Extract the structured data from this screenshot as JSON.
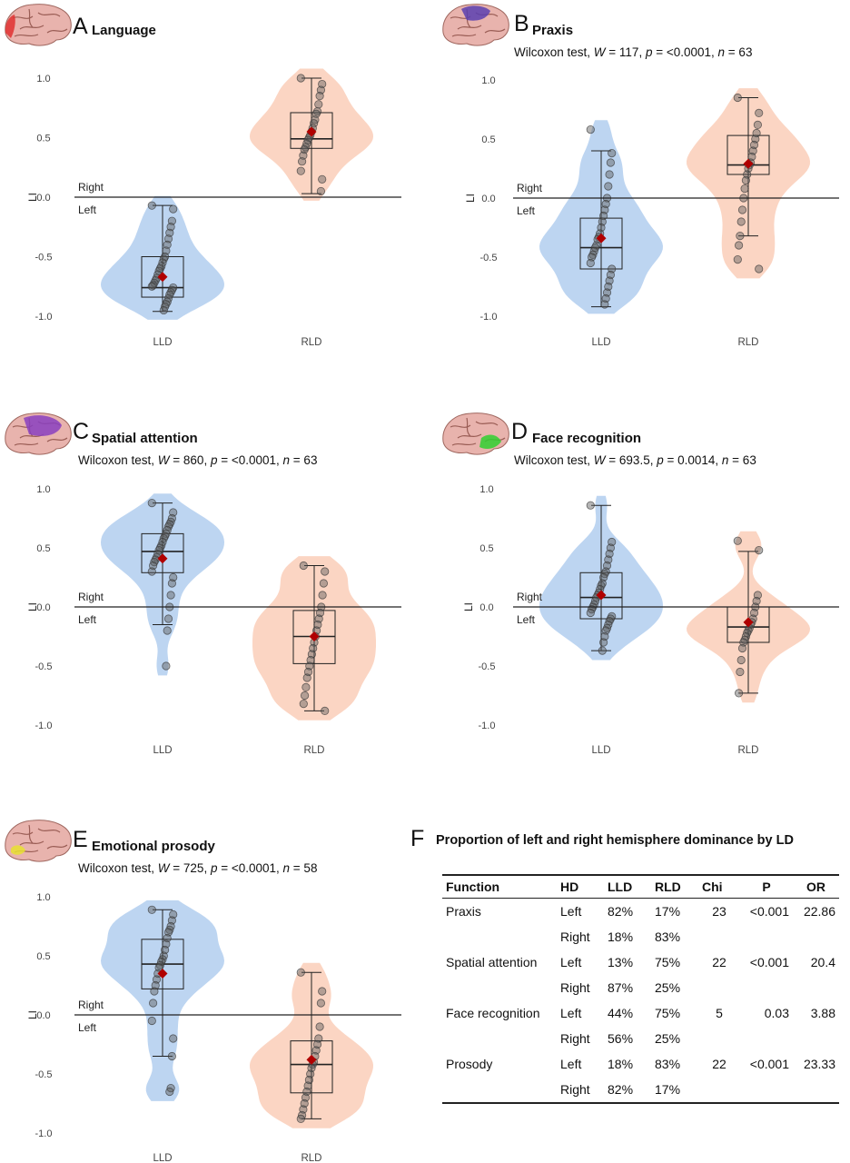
{
  "colors": {
    "lld": "#b9d3f0",
    "rld": "#fbd3c0",
    "mean": "#b00000",
    "point": "#5a5a5a"
  },
  "common": {
    "right_label": "Right",
    "left_label": "Left",
    "li_label": "LI",
    "categories": [
      "LLD",
      "RLD"
    ],
    "y_ticks": [
      "1.0",
      "0.5",
      "0.0",
      "-0.5",
      "-1.0"
    ]
  },
  "panels": [
    {
      "letter": "A",
      "title": "Language",
      "stat": null,
      "brain_highlight": "#e03030",
      "chart_data": {
        "type": "violin-box",
        "ylim": [
          -1,
          1
        ],
        "groups": [
          {
            "name": "LLD",
            "q1": -0.84,
            "median": -0.76,
            "q3": -0.5,
            "whisker_low": -0.96,
            "whisker_high": -0.07,
            "mean": -0.67,
            "points": [
              -0.07,
              -0.1,
              -0.2,
              -0.25,
              -0.3,
              -0.35,
              -0.4,
              -0.45,
              -0.5,
              -0.52,
              -0.55,
              -0.58,
              -0.6,
              -0.62,
              -0.65,
              -0.68,
              -0.7,
              -0.72,
              -0.74,
              -0.75,
              -0.76,
              -0.78,
              -0.8,
              -0.82,
              -0.85,
              -0.88,
              -0.9,
              -0.92,
              -0.95
            ]
          },
          {
            "name": "RLD",
            "q1": 0.41,
            "median": 0.49,
            "q3": 0.71,
            "whisker_low": 0.03,
            "whisker_high": 1.0,
            "mean": 0.55,
            "points": [
              1.0,
              0.95,
              0.9,
              0.85,
              0.78,
              0.72,
              0.7,
              0.65,
              0.62,
              0.58,
              0.55,
              0.52,
              0.5,
              0.48,
              0.45,
              0.42,
              0.4,
              0.35,
              0.3,
              0.22,
              0.15,
              0.05
            ]
          }
        ]
      }
    },
    {
      "letter": "B",
      "title": "Praxis",
      "stat": {
        "pre": "Wilcoxon test, ",
        "W": "117",
        "p": "<0.0001",
        "n": "63"
      },
      "brain_highlight": "#5a3fb0",
      "chart_data": {
        "type": "violin-box",
        "ylim": [
          -1,
          1
        ],
        "groups": [
          {
            "name": "LLD",
            "q1": -0.6,
            "median": -0.42,
            "q3": -0.17,
            "whisker_low": -0.92,
            "whisker_high": 0.4,
            "mean": -0.34,
            "points": [
              0.58,
              0.38,
              0.3,
              0.2,
              0.1,
              0.0,
              -0.05,
              -0.1,
              -0.15,
              -0.2,
              -0.25,
              -0.3,
              -0.33,
              -0.35,
              -0.4,
              -0.42,
              -0.45,
              -0.48,
              -0.5,
              -0.55,
              -0.6,
              -0.65,
              -0.7,
              -0.75,
              -0.8,
              -0.85,
              -0.9
            ]
          },
          {
            "name": "RLD",
            "q1": 0.2,
            "median": 0.28,
            "q3": 0.53,
            "whisker_low": -0.32,
            "whisker_high": 0.85,
            "mean": 0.29,
            "points": [
              0.85,
              0.72,
              0.62,
              0.55,
              0.5,
              0.45,
              0.4,
              0.35,
              0.3,
              0.28,
              0.25,
              0.2,
              0.15,
              0.08,
              0.0,
              -0.1,
              -0.2,
              -0.32,
              -0.4,
              -0.52,
              -0.6
            ]
          }
        ]
      }
    },
    {
      "letter": "C",
      "title": "Spatial attention",
      "stat": {
        "pre": "Wilcoxon test, ",
        "W": "860",
        "p": "<0.0001",
        "n": "63"
      },
      "brain_highlight": "#8a3fc0",
      "chart_data": {
        "type": "violin-box",
        "ylim": [
          -1,
          1
        ],
        "groups": [
          {
            "name": "LLD",
            "q1": 0.29,
            "median": 0.47,
            "q3": 0.62,
            "whisker_low": -0.15,
            "whisker_high": 0.88,
            "mean": 0.41,
            "points": [
              0.88,
              0.8,
              0.75,
              0.72,
              0.7,
              0.68,
              0.65,
              0.62,
              0.6,
              0.58,
              0.55,
              0.52,
              0.5,
              0.48,
              0.45,
              0.42,
              0.4,
              0.38,
              0.35,
              0.3,
              0.25,
              0.2,
              0.1,
              0.0,
              -0.1,
              -0.2,
              -0.5
            ]
          },
          {
            "name": "RLD",
            "q1": -0.48,
            "median": -0.25,
            "q3": -0.03,
            "whisker_low": -0.88,
            "whisker_high": 0.35,
            "mean": -0.25,
            "points": [
              0.35,
              0.3,
              0.2,
              0.1,
              0.0,
              -0.05,
              -0.1,
              -0.15,
              -0.2,
              -0.25,
              -0.3,
              -0.35,
              -0.4,
              -0.45,
              -0.5,
              -0.55,
              -0.6,
              -0.68,
              -0.75,
              -0.82,
              -0.88
            ]
          }
        ]
      }
    },
    {
      "letter": "D",
      "title": "Face recognition",
      "stat": {
        "pre": "Wilcoxon test, ",
        "W": "693.5",
        "p": "0.0014",
        "n": "63"
      },
      "brain_highlight": "#30d030",
      "chart_data": {
        "type": "violin-box",
        "ylim": [
          -1,
          1
        ],
        "groups": [
          {
            "name": "LLD",
            "q1": -0.1,
            "median": 0.08,
            "q3": 0.29,
            "whisker_low": -0.37,
            "whisker_high": 0.86,
            "mean": 0.1,
            "points": [
              0.86,
              0.55,
              0.5,
              0.45,
              0.4,
              0.35,
              0.3,
              0.28,
              0.25,
              0.2,
              0.18,
              0.15,
              0.12,
              0.1,
              0.08,
              0.05,
              0.02,
              0.0,
              -0.02,
              -0.05,
              -0.08,
              -0.1,
              -0.12,
              -0.15,
              -0.18,
              -0.2,
              -0.25,
              -0.3,
              -0.37
            ]
          },
          {
            "name": "RLD",
            "q1": -0.3,
            "median": -0.17,
            "q3": 0.0,
            "whisker_low": -0.73,
            "whisker_high": 0.47,
            "mean": -0.13,
            "points": [
              0.56,
              0.48,
              0.1,
              0.05,
              0.0,
              -0.05,
              -0.1,
              -0.13,
              -0.15,
              -0.18,
              -0.2,
              -0.22,
              -0.25,
              -0.28,
              -0.3,
              -0.35,
              -0.45,
              -0.55,
              -0.73
            ]
          }
        ]
      }
    },
    {
      "letter": "E",
      "title": "Emotional prosody",
      "stat": {
        "pre": "Wilcoxon test, ",
        "W": "725",
        "p": "<0.0001",
        "n": "58"
      },
      "brain_highlight": "#e8e030",
      "chart_data": {
        "type": "violin-box",
        "ylim": [
          -1,
          1
        ],
        "groups": [
          {
            "name": "LLD",
            "q1": 0.22,
            "median": 0.43,
            "q3": 0.64,
            "whisker_low": -0.35,
            "whisker_high": 0.89,
            "mean": 0.35,
            "points": [
              0.89,
              0.85,
              0.8,
              0.75,
              0.72,
              0.7,
              0.65,
              0.6,
              0.55,
              0.5,
              0.47,
              0.45,
              0.42,
              0.4,
              0.35,
              0.3,
              0.25,
              0.2,
              0.1,
              -0.05,
              -0.2,
              -0.35,
              -0.62,
              -0.65
            ]
          },
          {
            "name": "RLD",
            "q1": -0.66,
            "median": -0.42,
            "q3": -0.22,
            "whisker_low": -0.88,
            "whisker_high": 0.36,
            "mean": -0.38,
            "points": [
              0.36,
              0.2,
              0.1,
              -0.1,
              -0.2,
              -0.25,
              -0.3,
              -0.35,
              -0.4,
              -0.42,
              -0.45,
              -0.5,
              -0.55,
              -0.6,
              -0.65,
              -0.7,
              -0.75,
              -0.8,
              -0.85,
              -0.88
            ]
          }
        ]
      }
    }
  ],
  "table": {
    "letter": "F",
    "title": "Proportion of left and right hemisphere dominance by LD",
    "headers": [
      "Function",
      "HD",
      "LLD",
      "RLD",
      "Chi",
      "P",
      "OR"
    ],
    "rows": [
      [
        "Praxis",
        "Left",
        "82%",
        "17%",
        "23",
        "<0.001",
        "22.86"
      ],
      [
        "",
        "Right",
        "18%",
        "83%",
        "",
        "",
        ""
      ],
      [
        "Spatial attention",
        "Left",
        "13%",
        "75%",
        "22",
        "<0.001",
        "20.4"
      ],
      [
        "",
        "Right",
        "87%",
        "25%",
        "",
        "",
        ""
      ],
      [
        "Face recognition",
        "Left",
        "44%",
        "75%",
        "5",
        "0.03",
        "3.88"
      ],
      [
        "",
        "Right",
        "56%",
        "25%",
        "",
        "",
        ""
      ],
      [
        "Prosody",
        "Left",
        "18%",
        "83%",
        "22",
        "<0.001",
        "23.33"
      ],
      [
        "",
        "Right",
        "82%",
        "17%",
        "",
        "",
        ""
      ]
    ]
  }
}
